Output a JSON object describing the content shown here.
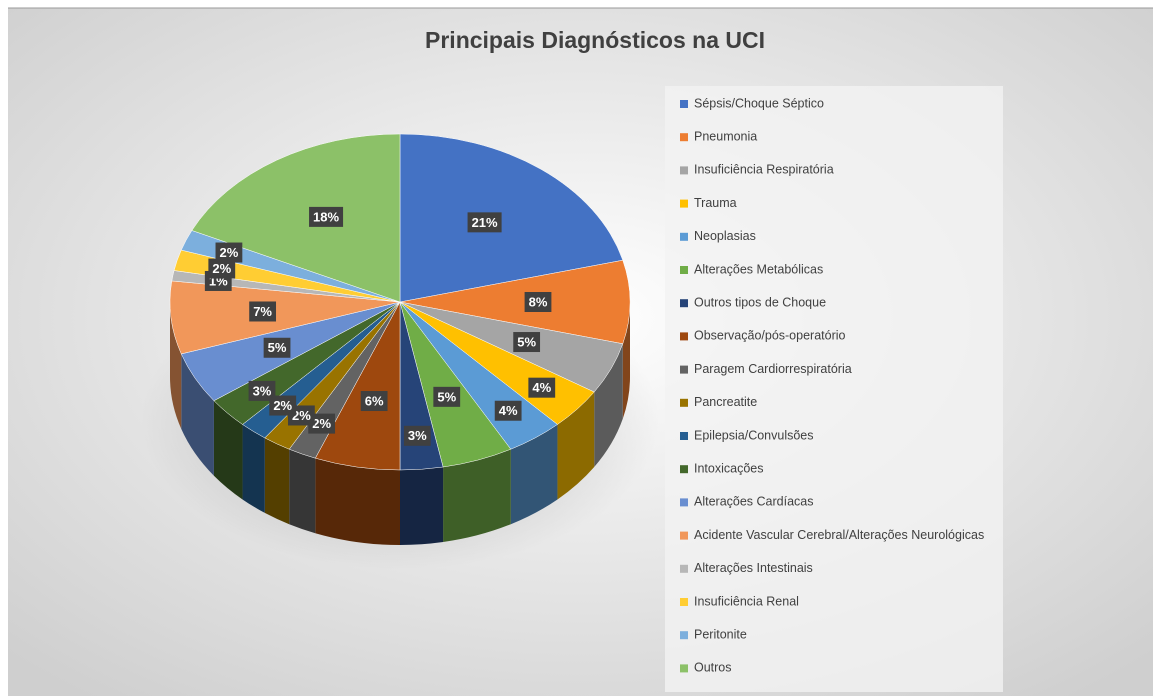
{
  "chart_data": {
    "type": "pie",
    "title": "Principais Diagnósticos na UCI",
    "categories": [
      "Sépsis/Choque Séptico",
      "Pneumonia",
      "Insuficiência Respiratória",
      "Trauma",
      "Neoplasias",
      "Alterações Metabólicas",
      "Outros tipos de Choque",
      "Observação/pós-operatório",
      "Paragem Cardiorrespiratória",
      "Pancreatite",
      "Epilepsia/Convulsões",
      "Intoxicações",
      "Alterações Cardíacas",
      "Acidente Vascular Cerebral/Alterações Neurológicas",
      "Alterações Intestinais",
      "Insuficiência Renal",
      "Peritonite",
      "Outros"
    ],
    "values": [
      21,
      8,
      5,
      4,
      4,
      5,
      3,
      6,
      2,
      2,
      2,
      3,
      5,
      7,
      1,
      2,
      2,
      18
    ],
    "value_labels": [
      "21%",
      "8%",
      "5%",
      "4%",
      "4%",
      "5%",
      "3%",
      "6%",
      "2%",
      "2%",
      "2%",
      "3%",
      "5%",
      "7%",
      "1%",
      "2%",
      "2%",
      "18%"
    ],
    "colors": [
      "#4472C4",
      "#ED7D31",
      "#A5A5A5",
      "#FFC000",
      "#5B9BD5",
      "#70AD47",
      "#264478",
      "#9E480E",
      "#636363",
      "#997300",
      "#255E91",
      "#43682B",
      "#698ED0",
      "#F1975A",
      "#B7B7B7",
      "#FFCD33",
      "#7CAFDD",
      "#8CC168"
    ],
    "legend": "right"
  }
}
